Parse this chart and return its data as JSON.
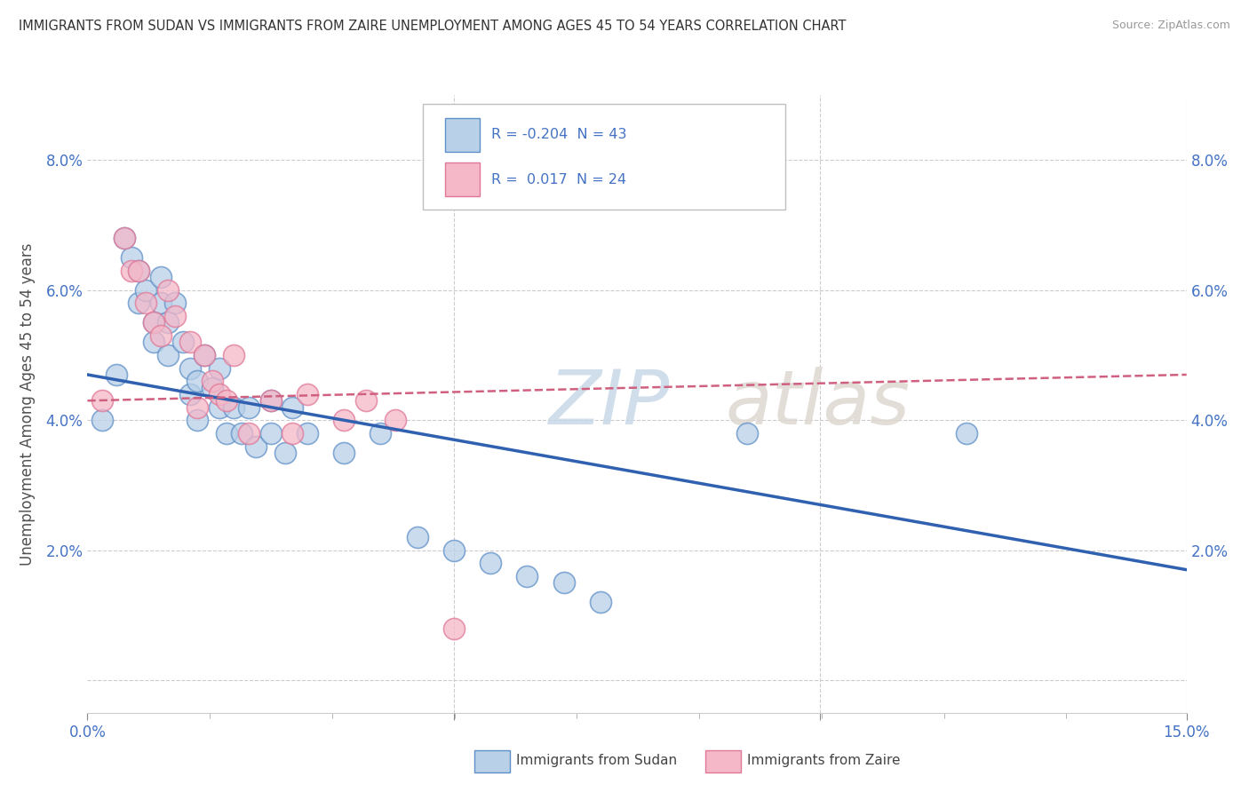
{
  "title": "IMMIGRANTS FROM SUDAN VS IMMIGRANTS FROM ZAIRE UNEMPLOYMENT AMONG AGES 45 TO 54 YEARS CORRELATION CHART",
  "source": "Source: ZipAtlas.com",
  "ylabel": "Unemployment Among Ages 45 to 54 years",
  "xlim": [
    0.0,
    0.15
  ],
  "ylim": [
    -0.005,
    0.09
  ],
  "sudan_R": -0.204,
  "sudan_N": 43,
  "zaire_R": 0.017,
  "zaire_N": 24,
  "sudan_color": "#b8d0e8",
  "zaire_color": "#f4b8c8",
  "sudan_edge_color": "#6090c8",
  "zaire_edge_color": "#e07898",
  "sudan_line_color": "#3060b0",
  "zaire_line_color": "#d06080",
  "watermark_zip_color": "#d0dce8",
  "watermark_atlas_color": "#ddd0c8",
  "legend_label_sudan": "Immigrants from Sudan",
  "legend_label_zaire": "Immigrants from Zaire",
  "background_color": "#ffffff",
  "grid_color": "#cccccc",
  "title_color": "#333333",
  "axis_label_color": "#4472c4",
  "sudan_scatter_x": [
    0.002,
    0.004,
    0.005,
    0.006,
    0.007,
    0.007,
    0.008,
    0.009,
    0.009,
    0.01,
    0.01,
    0.011,
    0.011,
    0.012,
    0.013,
    0.014,
    0.014,
    0.015,
    0.015,
    0.016,
    0.017,
    0.018,
    0.018,
    0.019,
    0.02,
    0.021,
    0.022,
    0.023,
    0.025,
    0.025,
    0.027,
    0.028,
    0.03,
    0.035,
    0.04,
    0.045,
    0.05,
    0.055,
    0.06,
    0.065,
    0.07,
    0.09,
    0.12
  ],
  "sudan_scatter_y": [
    0.04,
    0.047,
    0.068,
    0.065,
    0.063,
    0.058,
    0.06,
    0.055,
    0.052,
    0.062,
    0.058,
    0.055,
    0.05,
    0.058,
    0.052,
    0.048,
    0.044,
    0.046,
    0.04,
    0.05,
    0.045,
    0.048,
    0.042,
    0.038,
    0.042,
    0.038,
    0.042,
    0.036,
    0.043,
    0.038,
    0.035,
    0.042,
    0.038,
    0.035,
    0.038,
    0.022,
    0.02,
    0.018,
    0.016,
    0.015,
    0.012,
    0.038,
    0.038
  ],
  "zaire_scatter_x": [
    0.002,
    0.005,
    0.006,
    0.007,
    0.008,
    0.009,
    0.01,
    0.011,
    0.012,
    0.014,
    0.015,
    0.016,
    0.017,
    0.018,
    0.019,
    0.02,
    0.022,
    0.025,
    0.028,
    0.03,
    0.035,
    0.038,
    0.042,
    0.05
  ],
  "zaire_scatter_y": [
    0.043,
    0.068,
    0.063,
    0.063,
    0.058,
    0.055,
    0.053,
    0.06,
    0.056,
    0.052,
    0.042,
    0.05,
    0.046,
    0.044,
    0.043,
    0.05,
    0.038,
    0.043,
    0.038,
    0.044,
    0.04,
    0.043,
    0.04,
    0.008
  ],
  "sudan_trend_x": [
    0.0,
    0.15
  ],
  "sudan_trend_y": [
    0.047,
    0.017
  ],
  "zaire_trend_x": [
    0.0,
    0.15
  ],
  "zaire_trend_y": [
    0.043,
    0.047
  ],
  "yticks": [
    0.0,
    0.02,
    0.04,
    0.06,
    0.08
  ],
  "ytick_labels": [
    "",
    "2.0%",
    "4.0%",
    "6.0%",
    "8.0%"
  ],
  "xticks": [
    0.0,
    0.05,
    0.1,
    0.15
  ],
  "xtick_labels": [
    "0.0%",
    "",
    "",
    "15.0%"
  ]
}
